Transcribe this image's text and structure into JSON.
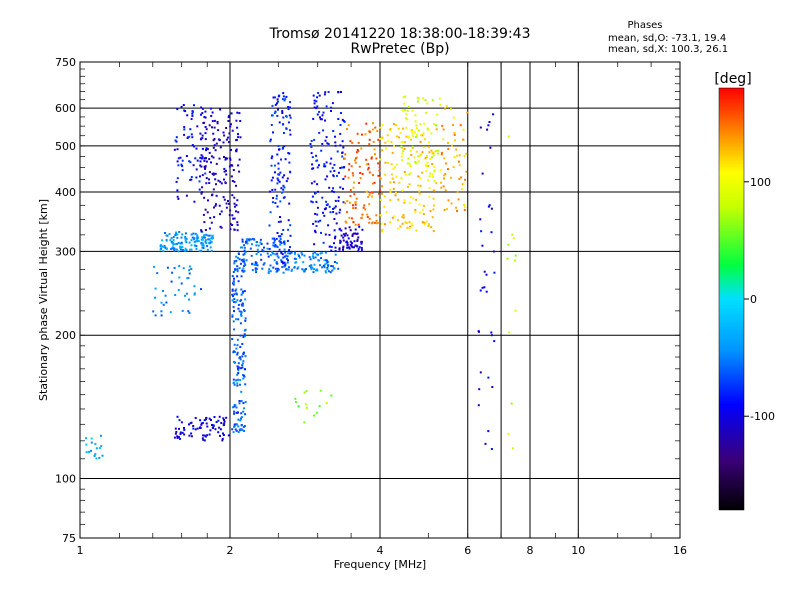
{
  "header": {
    "title_line1": "Tromsø 20141220 18:38:00-18:39:43",
    "title_line2": "RwPretec (Bp)",
    "stats_title": "Phases",
    "stats_o": "mean, sd,O: -73.1, 19.4",
    "stats_x": "mean, sd,X: 100.3, 26.1"
  },
  "chart_data": {
    "type": "scatter",
    "xlabel": "Frequency [MHz]",
    "ylabel": "Stationary phase Virtual Height [km]",
    "xscale": "log",
    "yscale": "log",
    "xlim": [
      1,
      16
    ],
    "ylim": [
      75,
      750
    ],
    "xticks": [
      1,
      2,
      4,
      6,
      8,
      10,
      16
    ],
    "xtick_labels": [
      "1",
      "2",
      "4",
      "6",
      "8",
      "10",
      "16"
    ],
    "xgrid": [
      2,
      4,
      6,
      7,
      8,
      10
    ],
    "yticks": [
      75,
      100,
      200,
      300,
      400,
      500,
      600,
      750
    ],
    "ytick_labels": [
      "75",
      "100",
      "200",
      "300",
      "400",
      "500",
      "600",
      "750"
    ],
    "ygrid": [
      100,
      200,
      300,
      400,
      500,
      600
    ],
    "colorbar": {
      "label": "[deg]",
      "range": [
        -180,
        180
      ],
      "ticks": [
        100,
        0,
        -100
      ],
      "tick_labels": [
        "100",
        "0",
        "-100"
      ]
    },
    "clusters": [
      {
        "x": [
          1.45,
          1.85
        ],
        "y": [
          300,
          330
        ],
        "phase": -40,
        "count": 140
      },
      {
        "x": [
          1.75,
          2.1
        ],
        "y": [
          330,
          600
        ],
        "phase": -110,
        "count": 170
      },
      {
        "x": [
          1.55,
          1.8
        ],
        "y": [
          380,
          620
        ],
        "phase": -90,
        "count": 80
      },
      {
        "x": [
          2.02,
          2.15
        ],
        "y": [
          125,
          300
        ],
        "phase": -60,
        "count": 190
      },
      {
        "x": [
          1.55,
          2.0
        ],
        "y": [
          120,
          135
        ],
        "phase": -100,
        "count": 80
      },
      {
        "x": [
          1.02,
          1.12
        ],
        "y": [
          110,
          125
        ],
        "phase": -30,
        "count": 18
      },
      {
        "x": [
          1.4,
          1.75
        ],
        "y": [
          220,
          280
        ],
        "phase": -50,
        "count": 40
      },
      {
        "x": [
          2.1,
          2.6
        ],
        "y": [
          270,
          320
        ],
        "phase": -60,
        "count": 120
      },
      {
        "x": [
          2.4,
          2.65
        ],
        "y": [
          280,
          650
        ],
        "phase": -80,
        "count": 130
      },
      {
        "x": [
          2.6,
          3.3
        ],
        "y": [
          270,
          300
        ],
        "phase": -50,
        "count": 90
      },
      {
        "x": [
          2.9,
          3.4
        ],
        "y": [
          300,
          650
        ],
        "phase": -90,
        "count": 160
      },
      {
        "x": [
          3.3,
          3.7
        ],
        "y": [
          300,
          340
        ],
        "phase": -110,
        "count": 60
      },
      {
        "x": [
          3.4,
          4.0
        ],
        "y": [
          340,
          560
        ],
        "phase": 150,
        "count": 110
      },
      {
        "x": [
          4.0,
          5.2
        ],
        "y": [
          330,
          560
        ],
        "phase": 120,
        "count": 170
      },
      {
        "x": [
          4.4,
          5.3
        ],
        "y": [
          420,
          640
        ],
        "phase": 85,
        "count": 70
      },
      {
        "x": [
          5.3,
          6.0
        ],
        "y": [
          360,
          620
        ],
        "phase": 130,
        "count": 60
      },
      {
        "x": [
          2.7,
          3.2
        ],
        "y": [
          130,
          160
        ],
        "phase": 60,
        "count": 14
      },
      {
        "x": [
          6.3,
          6.8
        ],
        "y": [
          110,
          660
        ],
        "phase": -100,
        "count": 35
      },
      {
        "x": [
          7.2,
          7.5
        ],
        "y": [
          100,
          600
        ],
        "phase": 80,
        "count": 12
      }
    ]
  }
}
